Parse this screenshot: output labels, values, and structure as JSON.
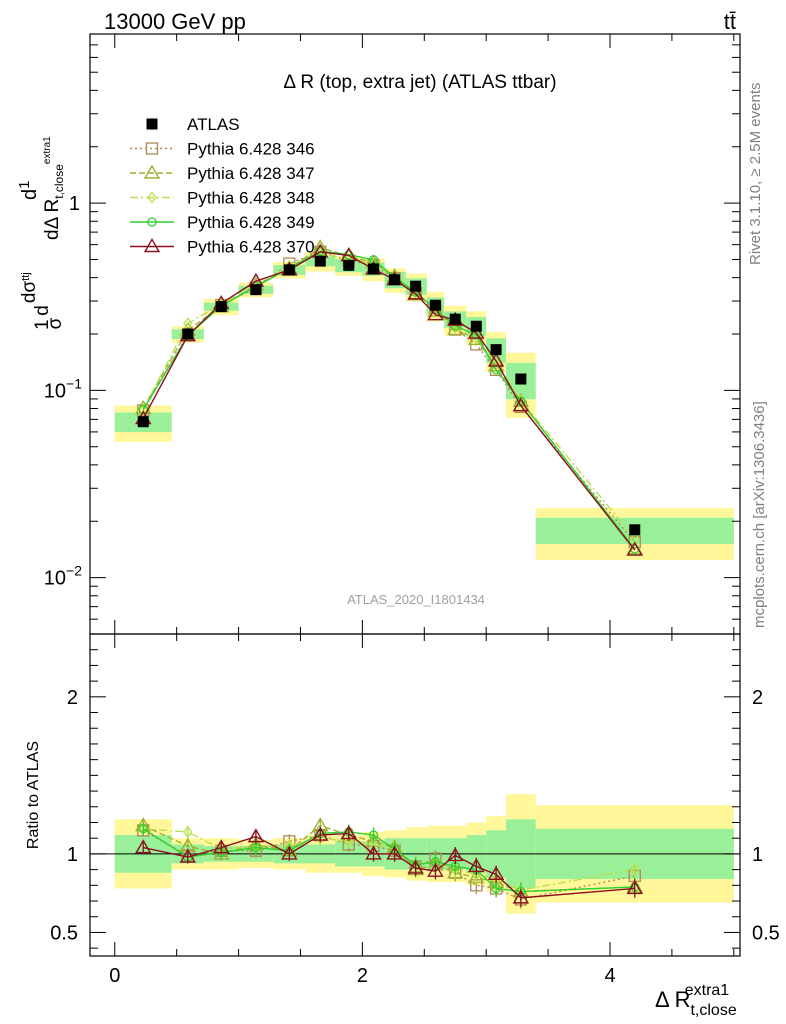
{
  "header": {
    "energy_label": "13000 GeV pp",
    "process_label": "tt̄",
    "side_rivet": "Rivet 3.1.10, ≥ 2.5M events",
    "side_mcplots": "mcplots.cern.ch [arXiv:1306.3436]",
    "watermark": "ATLAS_2020_I1801434"
  },
  "chart_data": {
    "type": "scatter",
    "title": "Δ R (top, extra jet) (ATLAS ttbar)",
    "ylabel": "dσ^ttj / dΔR^extra1_t,close · 1/σ^ttj",
    "ylabel_ratio": "Ratio to ATLAS",
    "xlabel": "Δ R^extra1_t,close",
    "xlim": [
      -0.2,
      5.05
    ],
    "ylim": [
      0.005,
      8.0
    ],
    "yscale": "log",
    "ratio_ylim": [
      0.35,
      2.4
    ],
    "x_ticks": [
      "0",
      "2",
      "4"
    ],
    "y_ticks": [
      "10^-2",
      "10^-1",
      "1"
    ],
    "ratio_ticks": [
      "0.5",
      "1",
      "2"
    ],
    "legend_position": "top-left",
    "bins": [
      {
        "lo": 0.0,
        "hi": 0.46,
        "x": 0.23
      },
      {
        "lo": 0.46,
        "hi": 0.72,
        "x": 0.59
      },
      {
        "lo": 0.72,
        "hi": 1.0,
        "x": 0.86
      },
      {
        "lo": 1.0,
        "hi": 1.28,
        "x": 1.14
      },
      {
        "lo": 1.28,
        "hi": 1.54,
        "x": 1.41
      },
      {
        "lo": 1.54,
        "hi": 1.78,
        "x": 1.66
      },
      {
        "lo": 1.78,
        "hi": 2.0,
        "x": 1.89
      },
      {
        "lo": 2.0,
        "hi": 2.18,
        "x": 2.09
      },
      {
        "lo": 2.18,
        "hi": 2.35,
        "x": 2.26
      },
      {
        "lo": 2.35,
        "hi": 2.52,
        "x": 2.43
      },
      {
        "lo": 2.52,
        "hi": 2.66,
        "x": 2.59
      },
      {
        "lo": 2.66,
        "hi": 2.84,
        "x": 2.75
      },
      {
        "lo": 2.84,
        "hi": 3.0,
        "x": 2.92
      },
      {
        "lo": 3.0,
        "hi": 3.16,
        "x": 3.08
      },
      {
        "lo": 3.16,
        "hi": 3.4,
        "x": 3.28
      },
      {
        "lo": 3.4,
        "hi": 5.0,
        "x": 4.2
      }
    ],
    "data": {
      "name": "ATLAS",
      "values": [
        0.068,
        0.2,
        0.28,
        0.345,
        0.44,
        0.49,
        0.465,
        0.445,
        0.39,
        0.36,
        0.285,
        0.24,
        0.22,
        0.165,
        0.115,
        0.018
      ],
      "band_stat": [
        0.12,
        0.06,
        0.05,
        0.05,
        0.06,
        0.06,
        0.08,
        0.08,
        0.1,
        0.1,
        0.1,
        0.1,
        0.12,
        0.15,
        0.22,
        0.16
      ],
      "band_total": [
        0.22,
        0.1,
        0.1,
        0.09,
        0.1,
        0.12,
        0.12,
        0.14,
        0.15,
        0.17,
        0.18,
        0.18,
        0.2,
        0.24,
        0.38,
        0.31
      ]
    },
    "series": [
      {
        "name": "Pythia 6.428 346",
        "color": "#b08a55",
        "marker": "square",
        "dash": "2,3",
        "ratio": [
          1.15,
          0.99,
          1.02,
          1.02,
          1.08,
          1.12,
          1.06,
          1.05,
          1.02,
          0.92,
          0.97,
          0.88,
          0.8,
          0.78,
          0.71,
          0.86
        ]
      },
      {
        "name": "Pythia 6.428 347",
        "color": "#a0b030",
        "marker": "triangle",
        "dash": "6,3",
        "ratio": [
          1.18,
          1.05,
          1.0,
          1.06,
          1.02,
          1.18,
          1.12,
          1.08,
          1.04,
          0.9,
          0.93,
          0.88,
          0.85,
          0.82,
          0.76,
          0.79
        ]
      },
      {
        "name": "Pythia 6.428 348",
        "color": "#b8e04a",
        "marker": "diamond",
        "dash": "8,3,2,3",
        "ratio": [
          1.16,
          1.14,
          1.03,
          1.05,
          1.05,
          1.1,
          1.08,
          1.06,
          1.03,
          0.93,
          0.95,
          0.9,
          0.87,
          0.84,
          0.77,
          0.9
        ]
      },
      {
        "name": "Pythia 6.428 349",
        "color": "#2fd02f",
        "marker": "circle",
        "dash": "",
        "ratio": [
          1.16,
          0.98,
          1.01,
          1.04,
          1.02,
          1.13,
          1.14,
          1.12,
          1.03,
          0.93,
          0.95,
          0.92,
          0.9,
          0.78,
          0.76,
          0.79
        ]
      },
      {
        "name": "Pythia 6.428 370",
        "color": "#8b1020",
        "marker": "triangle-open",
        "dash": "",
        "ratio": [
          1.04,
          0.98,
          1.04,
          1.11,
          1.0,
          1.12,
          1.13,
          1.0,
          1.0,
          0.91,
          0.89,
          0.99,
          0.92,
          0.87,
          0.72,
          0.78
        ]
      }
    ]
  }
}
